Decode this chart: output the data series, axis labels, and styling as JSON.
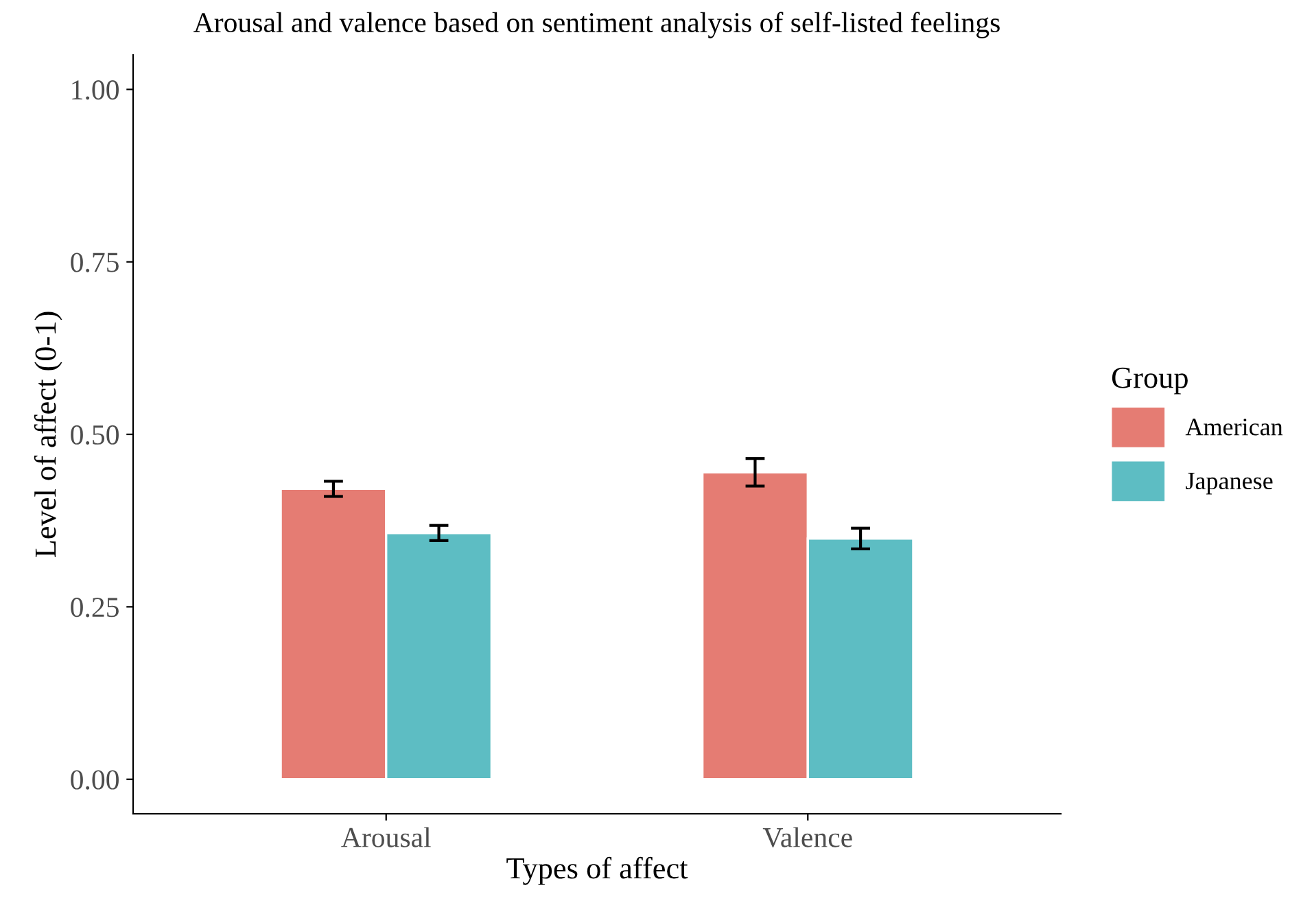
{
  "chart_data": {
    "type": "bar",
    "title": "Arousal and valence based on sentiment analysis of self-listed feelings",
    "xlabel": "Types of affect",
    "ylabel": "Level of affect (0-1)",
    "legend_title": "Group",
    "categories": [
      "Arousal",
      "Valence"
    ],
    "series": [
      {
        "name": "American",
        "color": "#e57c73",
        "values": [
          0.421,
          0.445
        ],
        "errors": [
          0.011,
          0.02
        ]
      },
      {
        "name": "Japanese",
        "color": "#5dbdc3",
        "values": [
          0.357,
          0.349
        ],
        "errors": [
          0.011,
          0.015
        ]
      }
    ],
    "ylim": [
      -0.05,
      1.05
    ],
    "yticks": [
      {
        "value": 0,
        "label": "0.00"
      },
      {
        "value": 0.25,
        "label": "0.25"
      },
      {
        "value": 0.5,
        "label": "0.50"
      },
      {
        "value": 0.75,
        "label": "0.75"
      },
      {
        "value": 1,
        "label": "1.00"
      }
    ],
    "grid": false,
    "legend": "right"
  }
}
